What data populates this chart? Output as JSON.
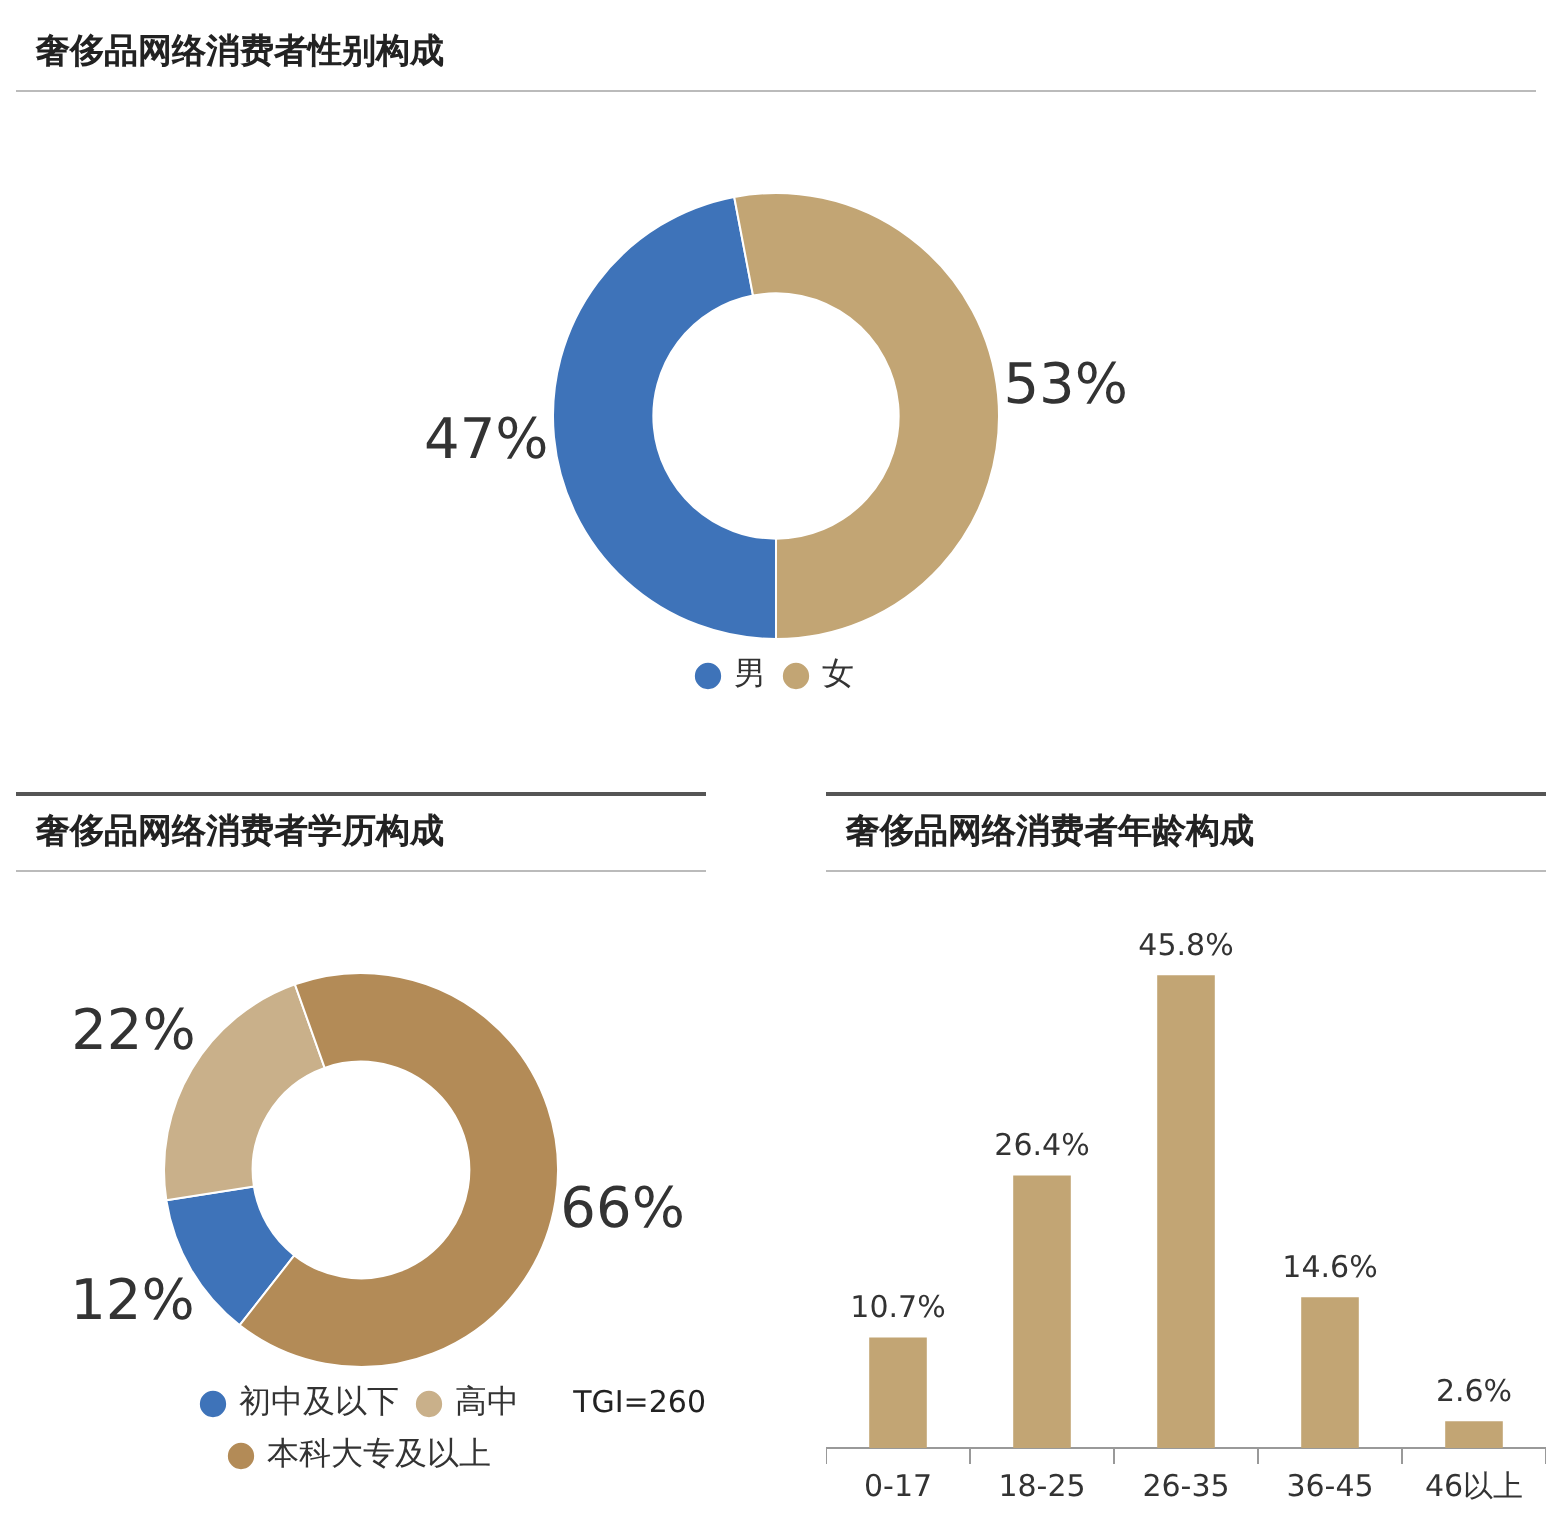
{
  "chart_data": [
    {
      "type": "donut",
      "title": "奢侈品网络消费者性别构成",
      "categories": [
        "男",
        "女"
      ],
      "values": [
        47,
        53
      ],
      "colors": [
        "#3e73b9",
        "#c2a574"
      ],
      "value_labels": [
        "47%",
        "53%"
      ],
      "legend": "bottom"
    },
    {
      "type": "donut",
      "title": "奢侈品网络消费者学历构成",
      "categories": [
        "初中及以下",
        "高中",
        "本科大专及以上"
      ],
      "values": [
        12,
        22,
        66
      ],
      "colors": [
        "#3e73b9",
        "#c9b08a",
        "#b38b57"
      ],
      "value_labels": [
        "12%",
        "22%",
        "66%"
      ],
      "legend": "bottom",
      "annotations": [
        "TGI=260"
      ]
    },
    {
      "type": "bar",
      "title": "奢侈品网络消费者年龄构成",
      "categories": [
        "0-17",
        "18-25",
        "26-35",
        "36-45",
        "46以上"
      ],
      "values": [
        10.7,
        26.4,
        45.8,
        14.6,
        2.6
      ],
      "color": "#c2a574",
      "value_labels": [
        "10.7%",
        "26.4%",
        "45.8%",
        "14.6%",
        "2.6%"
      ]
    }
  ]
}
